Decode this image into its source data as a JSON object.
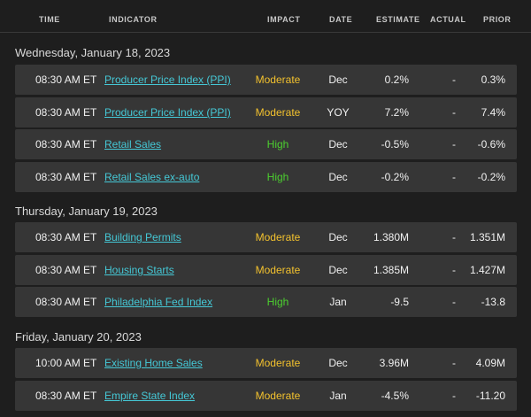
{
  "header": {
    "time": "TIME",
    "indicator": "INDICATOR",
    "impact": "IMPACT",
    "date": "DATE",
    "estimate": "ESTIMATE",
    "actual": "ACTUAL",
    "prior": "PRIOR"
  },
  "colors": {
    "link": "#45c8d6",
    "moderate": "#f2c12e",
    "high": "#4ccf2f",
    "row_bg": "#363636",
    "page_bg": "#1e1e1e"
  },
  "days": [
    {
      "label": "Wednesday, January 18, 2023",
      "events": [
        {
          "time": "08:30 AM ET",
          "indicator": "Producer Price Index (PPI)",
          "impact": "Moderate",
          "date": "Dec",
          "estimate": "0.2%",
          "actual": "-",
          "prior": "0.3%"
        },
        {
          "time": "08:30 AM ET",
          "indicator": "Producer Price Index (PPI)",
          "impact": "Moderate",
          "date": "YOY",
          "estimate": "7.2%",
          "actual": "-",
          "prior": "7.4%"
        },
        {
          "time": "08:30 AM ET",
          "indicator": "Retail Sales",
          "impact": "High",
          "date": "Dec",
          "estimate": "-0.5%",
          "actual": "-",
          "prior": "-0.6%"
        },
        {
          "time": "08:30 AM ET",
          "indicator": "Retail Sales ex-auto",
          "impact": "High",
          "date": "Dec",
          "estimate": "-0.2%",
          "actual": "-",
          "prior": "-0.2%"
        }
      ]
    },
    {
      "label": "Thursday, January 19, 2023",
      "events": [
        {
          "time": "08:30 AM ET",
          "indicator": "Building Permits",
          "impact": "Moderate",
          "date": "Dec",
          "estimate": "1.380M",
          "actual": "-",
          "prior": "1.351M"
        },
        {
          "time": "08:30 AM ET",
          "indicator": "Housing Starts",
          "impact": "Moderate",
          "date": "Dec",
          "estimate": "1.385M",
          "actual": "-",
          "prior": "1.427M"
        },
        {
          "time": "08:30 AM ET",
          "indicator": "Philadelphia Fed Index",
          "impact": "High",
          "date": "Jan",
          "estimate": "-9.5",
          "actual": "-",
          "prior": "-13.8"
        }
      ]
    },
    {
      "label": "Friday, January 20, 2023",
      "events": [
        {
          "time": "10:00 AM ET",
          "indicator": "Existing Home Sales",
          "impact": "Moderate",
          "date": "Dec",
          "estimate": "3.96M",
          "actual": "-",
          "prior": "4.09M"
        },
        {
          "time": "08:30 AM ET",
          "indicator": "Empire State Index",
          "impact": "Moderate",
          "date": "Jan",
          "estimate": "-4.5%",
          "actual": "-",
          "prior": "-11.20"
        }
      ]
    }
  ]
}
